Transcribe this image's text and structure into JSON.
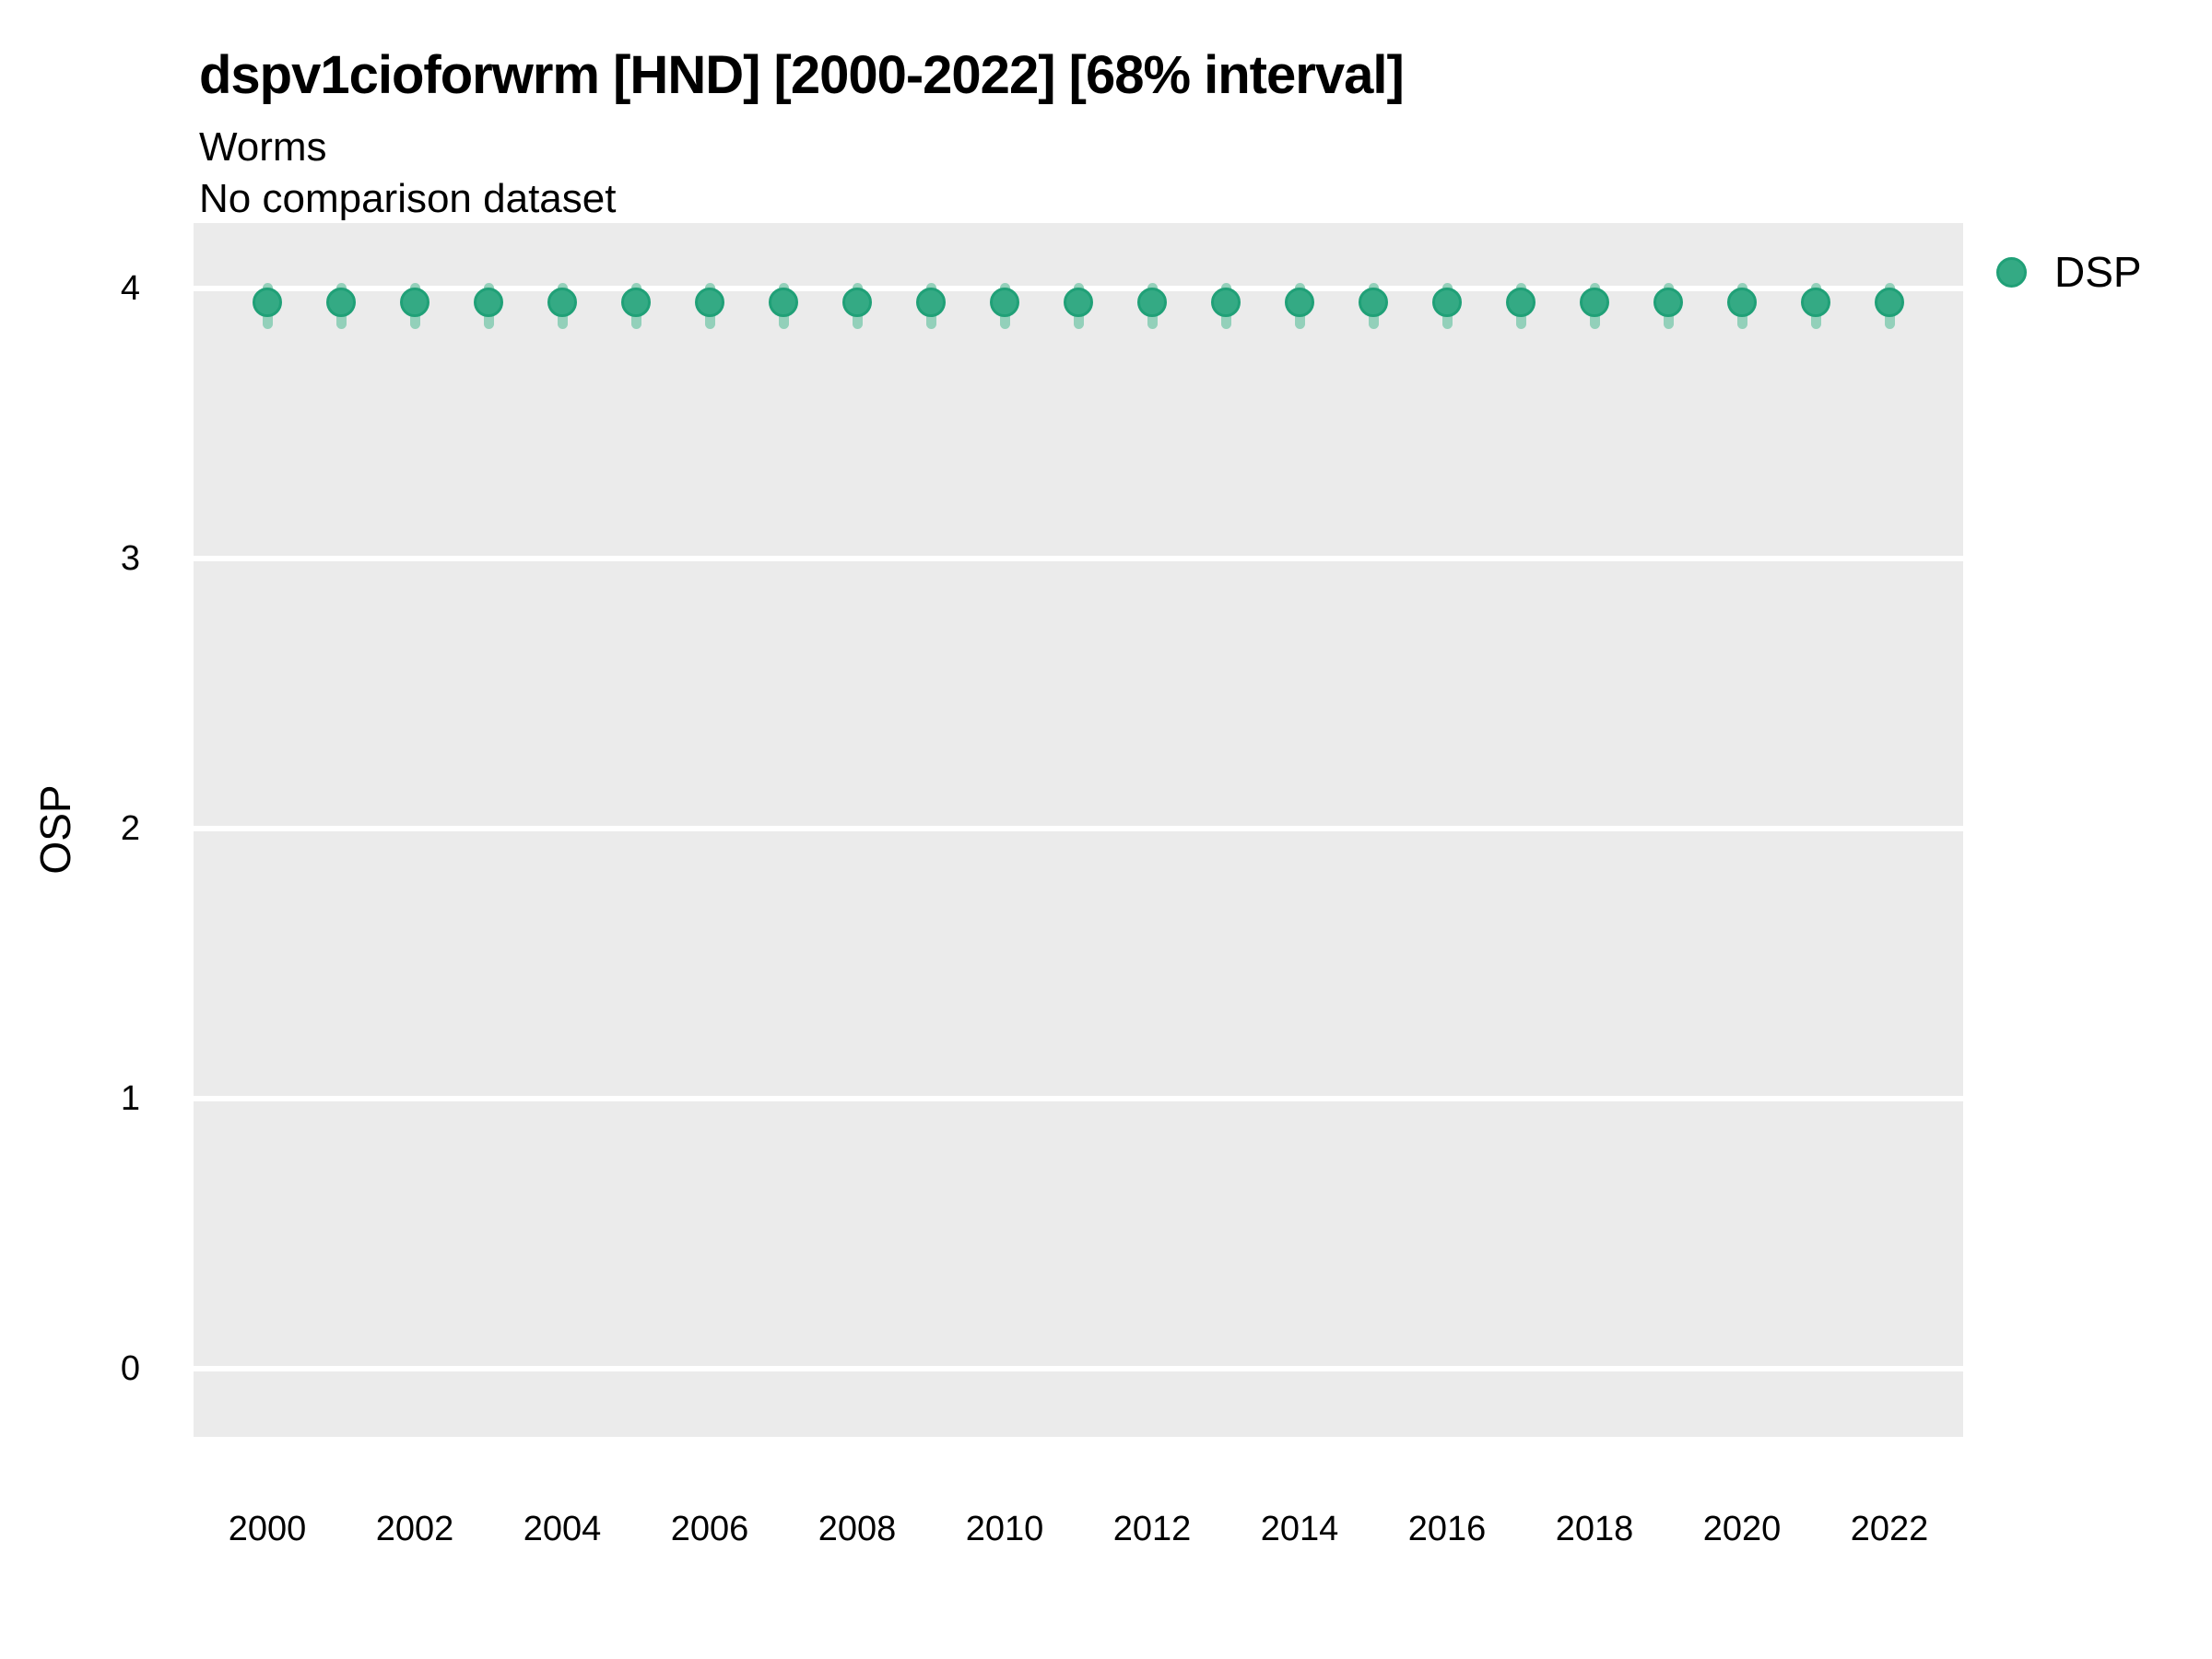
{
  "title": "dspv1cioforwrm [HND] [2000-2022] [68% interval]",
  "subtitle": "Worms",
  "note": "No comparison dataset",
  "ylabel": "OSP",
  "legend": {
    "items": [
      {
        "label": "DSP",
        "color": "#34AA84"
      }
    ]
  },
  "colors": {
    "panel_background": "#EBEBEB",
    "gridline": "#FFFFFF",
    "point_fill": "#34AA84",
    "point_edge": "#20A077",
    "interval_bar": "#93D0BA",
    "text": "#000000"
  },
  "chart_data": {
    "type": "scatter",
    "title": "dspv1cioforwrm [HND] [2000-2022] [68% interval]",
    "subtitle": "Worms",
    "note": "No comparison dataset",
    "xlabel": "",
    "ylabel": "OSP",
    "interval": "68%",
    "x": [
      2000,
      2001,
      2002,
      2003,
      2004,
      2005,
      2006,
      2007,
      2008,
      2009,
      2010,
      2011,
      2012,
      2013,
      2014,
      2015,
      2016,
      2017,
      2018,
      2019,
      2020,
      2021,
      2022
    ],
    "series": [
      {
        "name": "DSP",
        "values": [
          3.95,
          3.95,
          3.95,
          3.95,
          3.95,
          3.95,
          3.95,
          3.95,
          3.95,
          3.95,
          3.95,
          3.95,
          3.95,
          3.95,
          3.95,
          3.95,
          3.95,
          3.95,
          3.95,
          3.95,
          3.95,
          3.95,
          3.95
        ],
        "interval_low": [
          3.85,
          3.85,
          3.85,
          3.85,
          3.85,
          3.85,
          3.85,
          3.85,
          3.85,
          3.85,
          3.85,
          3.85,
          3.85,
          3.85,
          3.85,
          3.85,
          3.85,
          3.85,
          3.85,
          3.85,
          3.85,
          3.85,
          3.85
        ],
        "interval_high": [
          4.02,
          4.02,
          4.02,
          4.02,
          4.02,
          4.02,
          4.02,
          4.02,
          4.02,
          4.02,
          4.02,
          4.02,
          4.02,
          4.02,
          4.02,
          4.02,
          4.02,
          4.02,
          4.02,
          4.02,
          4.02,
          4.02,
          4.02
        ]
      }
    ],
    "x_ticks": [
      2000,
      2002,
      2004,
      2006,
      2008,
      2010,
      2012,
      2014,
      2016,
      2018,
      2020,
      2022
    ],
    "y_ticks": [
      0,
      1,
      2,
      3,
      4
    ],
    "xlim": [
      1999,
      2023
    ],
    "ylim": [
      -0.25,
      4.25
    ],
    "grid": "major horizontal white lines on gray panel",
    "legend_position": "right-top"
  }
}
